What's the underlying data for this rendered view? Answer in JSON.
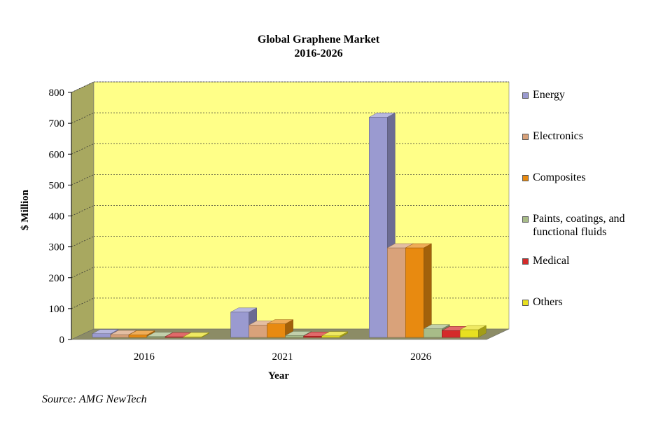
{
  "chart_data": {
    "type": "bar",
    "title": [
      "Global Graphene Market",
      "2016-2026"
    ],
    "xlabel": "Year",
    "ylabel": "$ Million",
    "categories": [
      "2016",
      "2021",
      "2026"
    ],
    "ylim": [
      0,
      800
    ],
    "yticks": [
      0,
      100,
      200,
      300,
      400,
      500,
      600,
      700,
      800
    ],
    "grid": true,
    "legend_position": "right",
    "series": [
      {
        "name": "Energy",
        "values": [
          12,
          82,
          713
        ],
        "color": "#9a9ad0"
      },
      {
        "name": "Electronics",
        "values": [
          9,
          40,
          290
        ],
        "color": "#d9a27a"
      },
      {
        "name": "Composites",
        "values": [
          8,
          44,
          290
        ],
        "color": "#e88a10"
      },
      {
        "name": "Paints, coatings, and functional fluids",
        "values": [
          3,
          6,
          28
        ],
        "color": "#a8bc88"
      },
      {
        "name": "Medical",
        "values": [
          2,
          4,
          22
        ],
        "color": "#d42a2a"
      },
      {
        "name": "Others",
        "values": [
          2,
          5,
          25
        ],
        "color": "#e8e020"
      }
    ]
  },
  "source": "Source: AMG NewTech",
  "colors": {
    "plot_background": "#ffff88",
    "wall_side": "#a8a860",
    "floor": "#8c8c66"
  }
}
